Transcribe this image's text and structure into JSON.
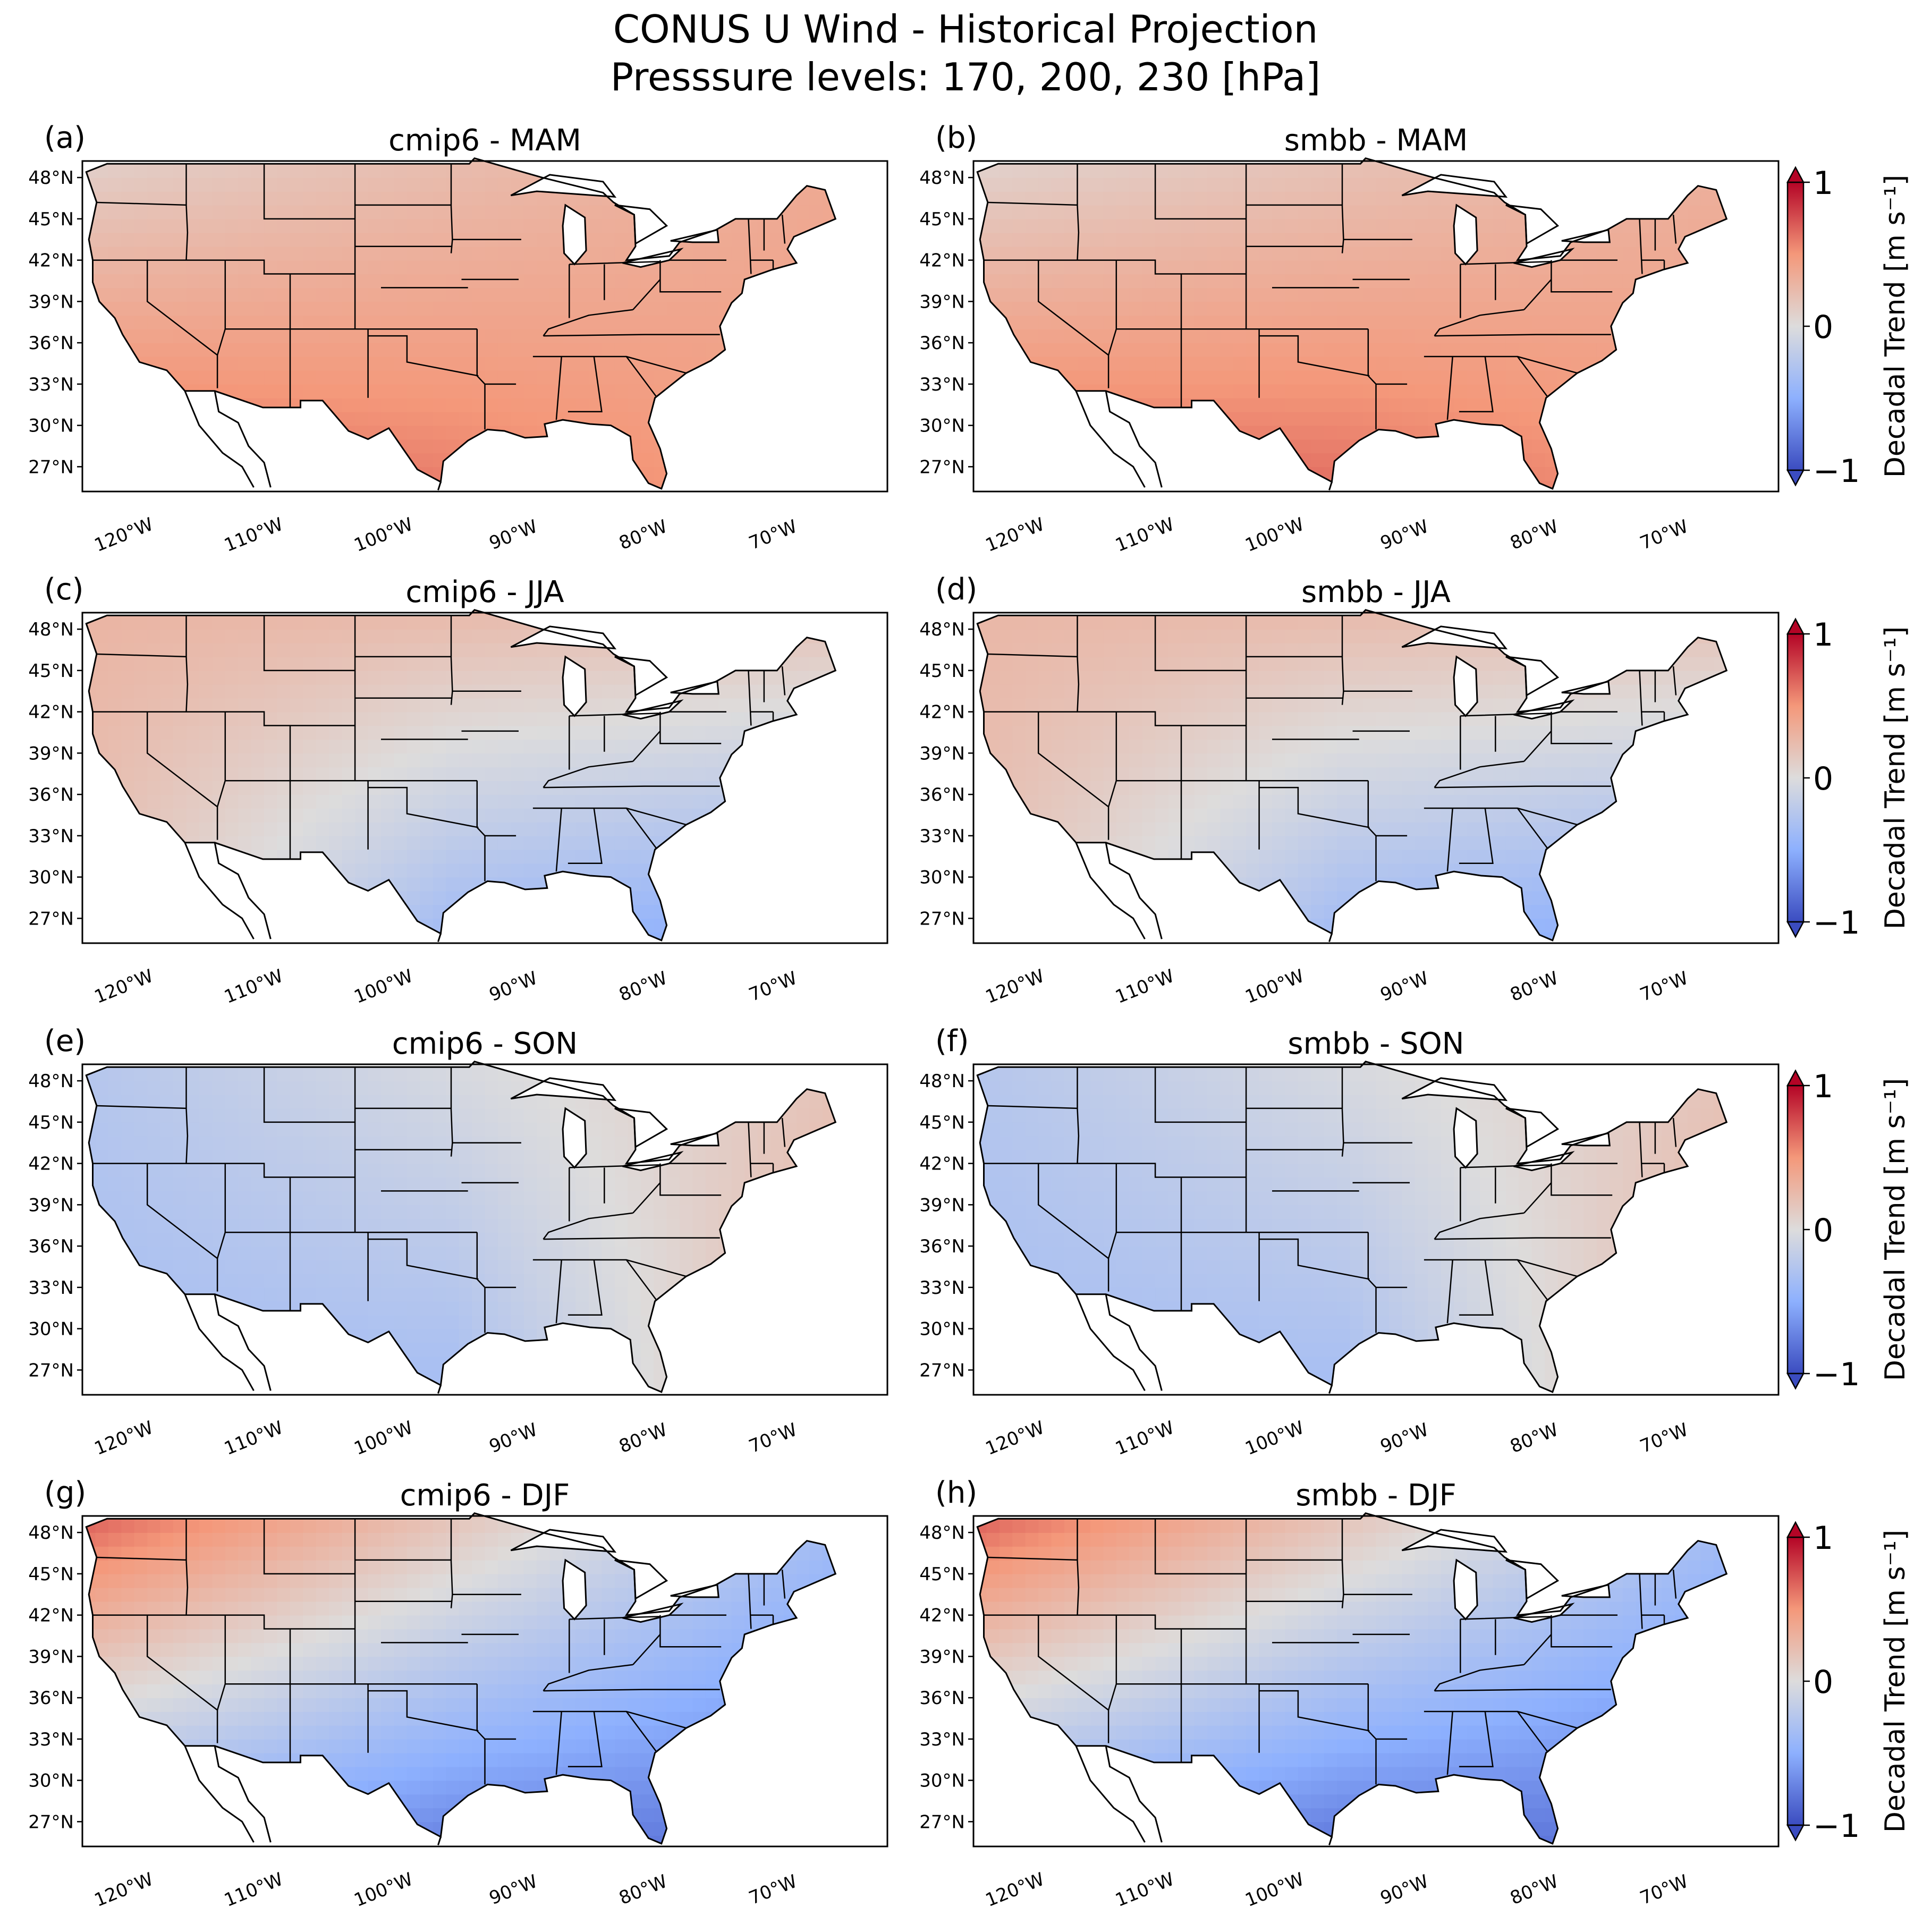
{
  "title": {
    "line1": "CONUS U Wind - Historical Projection",
    "line2": "Presssure levels: 170, 200, 230 [hPa]"
  },
  "lat_ticks": [
    "48°N",
    "45°N",
    "42°N",
    "39°N",
    "36°N",
    "33°N",
    "30°N",
    "27°N"
  ],
  "lon_ticks": [
    "120°W",
    "110°W",
    "100°W",
    "90°W",
    "80°W",
    "70°W"
  ],
  "colorbar": {
    "label": "Decadal Trend [m s⁻¹]",
    "ticks": [
      "1",
      "0",
      "−1"
    ],
    "min": -1,
    "max": 1,
    "colors": [
      "#3b4cc0",
      "#dddcdc",
      "#b40426"
    ]
  },
  "panels": [
    {
      "letter": "(a)",
      "title": "cmip6 - MAM",
      "season": "MAM",
      "model": "cmip6",
      "trend_profile": {
        "northwest": 0.0,
        "north": 0.25,
        "southwest": 0.7,
        "south": 0.6,
        "southeast": 0.45,
        "northeast": 0.45
      }
    },
    {
      "letter": "(b)",
      "title": "smbb - MAM",
      "season": "MAM",
      "model": "smbb",
      "trend_profile": {
        "northwest": 0.0,
        "north": 0.2,
        "southwest": 0.7,
        "south": 0.65,
        "southeast": 0.5,
        "northeast": 0.4
      }
    },
    {
      "letter": "(c)",
      "title": "cmip6 - JJA",
      "season": "JJA",
      "model": "cmip6",
      "trend_profile": {
        "northwest": 0.25,
        "north": 0.35,
        "southwest": 0.2,
        "south": -0.4,
        "southeast": -0.55,
        "northeast": 0.1
      }
    },
    {
      "letter": "(d)",
      "title": "smbb - JJA",
      "season": "JJA",
      "model": "smbb",
      "trend_profile": {
        "northwest": 0.25,
        "north": 0.3,
        "southwest": 0.2,
        "south": -0.4,
        "southeast": -0.55,
        "northeast": 0.15
      }
    },
    {
      "letter": "(e)",
      "title": "cmip6 - SON",
      "season": "SON",
      "model": "cmip6",
      "trend_profile": {
        "northwest": -0.35,
        "north": -0.1,
        "southwest": -0.35,
        "south": -0.35,
        "southeast": 0.3,
        "northeast": 0.35
      }
    },
    {
      "letter": "(f)",
      "title": "smbb - SON",
      "season": "SON",
      "model": "smbb",
      "trend_profile": {
        "northwest": -0.35,
        "north": -0.1,
        "southwest": -0.35,
        "south": -0.35,
        "southeast": 0.3,
        "northeast": 0.35
      }
    },
    {
      "letter": "(g)",
      "title": "cmip6 - DJF",
      "season": "DJF",
      "model": "cmip6",
      "trend_profile": {
        "northwest": 0.85,
        "north": 0.45,
        "southwest": -0.5,
        "south": -0.75,
        "southeast": -0.8,
        "northeast": -0.85
      }
    },
    {
      "letter": "(h)",
      "title": "smbb - DJF",
      "season": "DJF",
      "model": "smbb",
      "trend_profile": {
        "northwest": 0.85,
        "north": 0.45,
        "southwest": -0.55,
        "south": -0.8,
        "southeast": -0.8,
        "northeast": -0.85
      }
    }
  ]
}
